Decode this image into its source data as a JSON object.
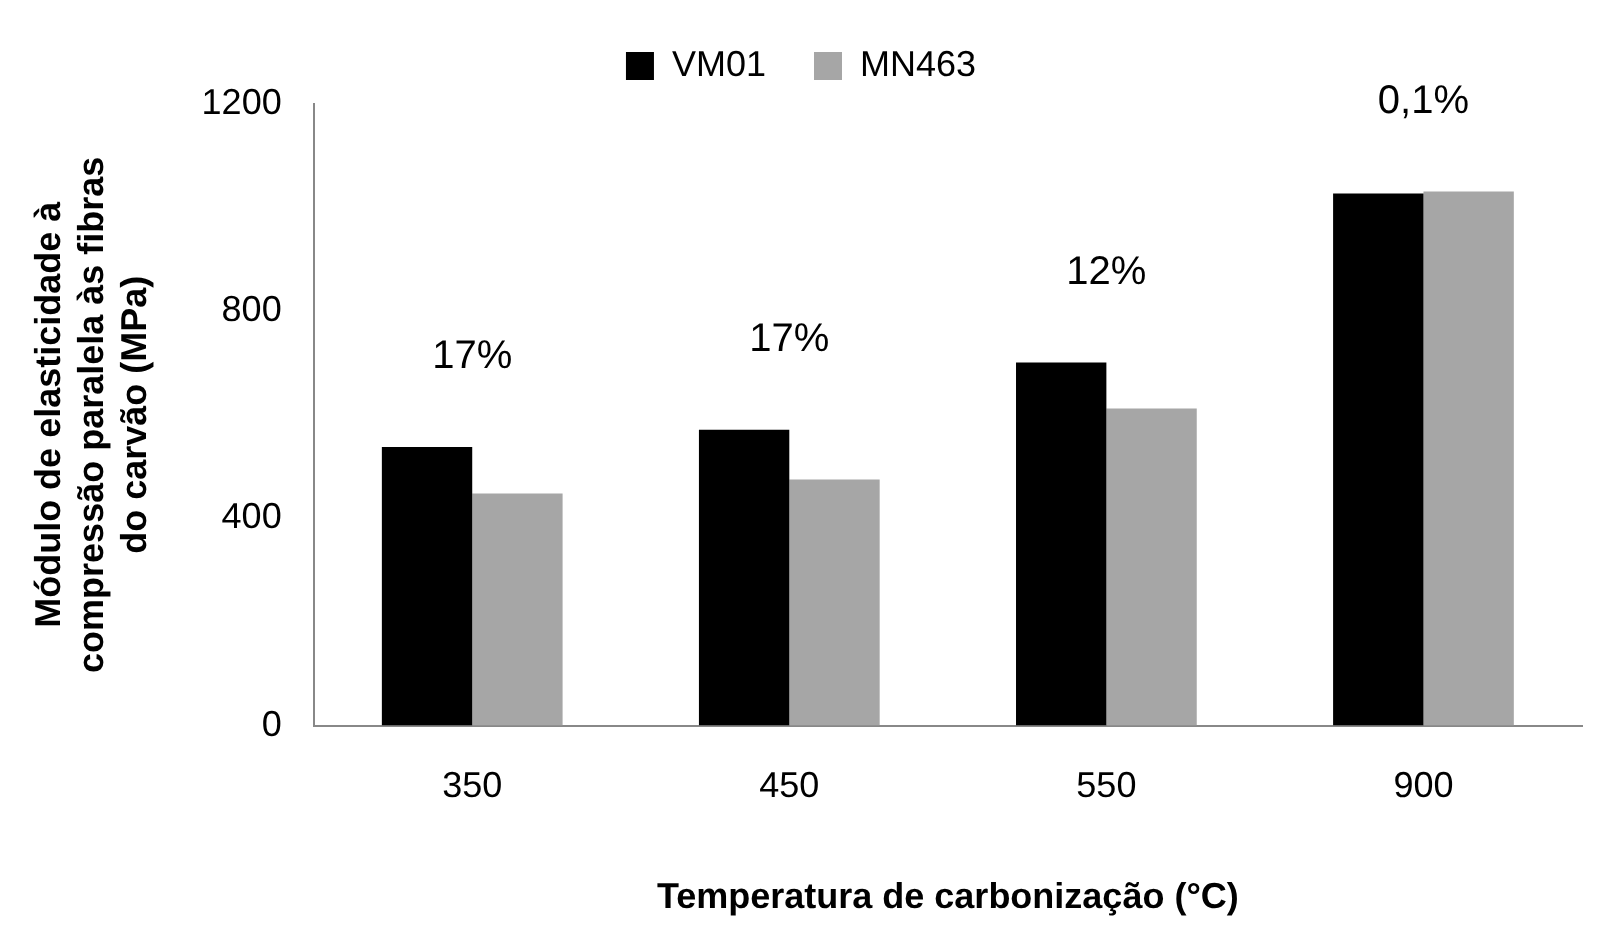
{
  "chart_data": {
    "type": "bar",
    "categories": [
      "350",
      "450",
      "550",
      "900"
    ],
    "series": [
      {
        "name": "VM01",
        "color": "#000000",
        "values": [
          538,
          571,
          701,
          1027
        ]
      },
      {
        "name": "MN463",
        "color": "#a6a6a6",
        "values": [
          448,
          475,
          612,
          1031
        ]
      }
    ],
    "xlabel": "Temperatura de carbonização (°C)",
    "ylabel": "Módulo de elasticidade à compressão paralela às fibras do carvão (MPa)",
    "ylim": [
      0,
      1200
    ],
    "yticks": [
      0,
      400,
      800,
      1200
    ],
    "grid": false,
    "legend": "top",
    "annotations": [
      "17%",
      "17%",
      "12%",
      "0,1%"
    ]
  }
}
